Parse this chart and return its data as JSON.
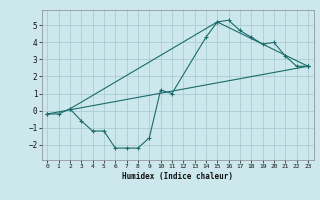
{
  "xlabel": "Humidex (Indice chaleur)",
  "ylabel": "",
  "bg_color": "#cce8ec",
  "grid_color": "#aacdd4",
  "line_color": "#1a6b6b",
  "xlim": [
    -0.5,
    23.5
  ],
  "ylim": [
    -2.9,
    5.9
  ],
  "xticks": [
    0,
    1,
    2,
    3,
    4,
    5,
    6,
    7,
    8,
    9,
    10,
    11,
    12,
    13,
    14,
    15,
    16,
    17,
    18,
    19,
    20,
    21,
    22,
    23
  ],
  "yticks": [
    -2,
    -1,
    0,
    1,
    2,
    3,
    4,
    5
  ],
  "curve1_x": [
    0,
    1,
    2,
    3,
    4,
    5,
    6,
    7,
    8,
    9,
    10,
    11,
    14,
    15,
    16,
    17,
    18,
    19,
    20,
    21,
    22,
    23
  ],
  "curve1_y": [
    -0.2,
    -0.2,
    0.1,
    -0.6,
    -1.2,
    -1.2,
    -2.2,
    -2.2,
    -2.2,
    -1.6,
    1.2,
    1.0,
    4.3,
    5.2,
    5.3,
    4.7,
    4.3,
    3.9,
    4.0,
    3.2,
    2.6,
    2.6
  ],
  "line2_x": [
    2,
    15,
    23
  ],
  "line2_y": [
    0.1,
    5.2,
    2.6
  ],
  "line3_x": [
    0,
    23
  ],
  "line3_y": [
    -0.2,
    2.6
  ]
}
